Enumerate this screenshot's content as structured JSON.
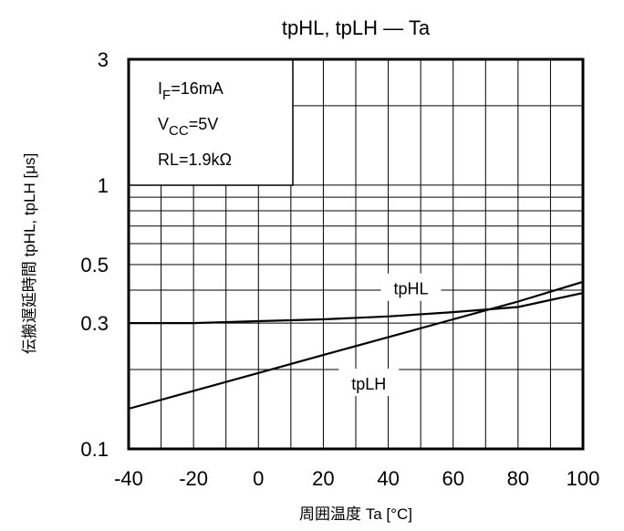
{
  "chart_data": {
    "type": "line",
    "title": "tpHL, tpLH — Ta",
    "xlabel": "周囲温度  Ta [°C]",
    "ylabel": "伝搬遅延時間  tpHL, tpLH [μs]",
    "xlim": [
      -40,
      100
    ],
    "ylim": [
      0.1,
      3
    ],
    "yscale": "log",
    "grid": true,
    "x_ticks": [
      -40,
      -20,
      0,
      20,
      40,
      60,
      80,
      100
    ],
    "x_tick_labels": [
      "-40",
      "-20",
      "0",
      "20",
      "40",
      "60",
      "80",
      "100"
    ],
    "y_ticks": [
      0.1,
      0.3,
      0.5,
      1,
      3
    ],
    "y_tick_labels": [
      "0.1",
      "0.3",
      "0.5",
      "1",
      "3"
    ],
    "conditions": [
      {
        "main": "I",
        "sub": "F",
        "rest": "=16mA"
      },
      {
        "main": "V",
        "sub": "CC",
        "rest": "=5V"
      },
      {
        "main": "RL=1.9kΩ",
        "sub": "",
        "rest": ""
      }
    ],
    "series": [
      {
        "name": "tpHL",
        "x": [
          -40,
          -20,
          0,
          20,
          40,
          60,
          80,
          100
        ],
        "y": [
          0.3,
          0.3,
          0.305,
          0.31,
          0.318,
          0.33,
          0.345,
          0.39
        ]
      },
      {
        "name": "tpLH",
        "x": [
          -40,
          -20,
          0,
          20,
          40,
          60,
          80,
          100
        ],
        "y": [
          0.142,
          0.166,
          0.194,
          0.227,
          0.265,
          0.31,
          0.362,
          0.43
        ]
      }
    ]
  }
}
